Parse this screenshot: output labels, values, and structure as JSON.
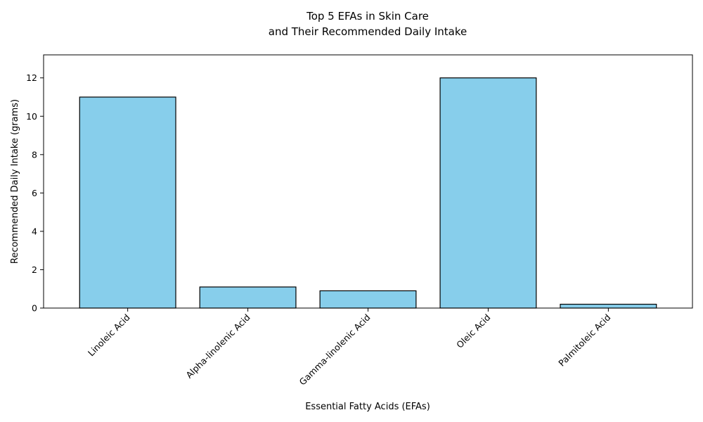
{
  "chart_data": {
    "type": "bar",
    "title_lines": [
      "Top 5 EFAs in Skin Care",
      "and Their Recommended Daily Intake"
    ],
    "xlabel": "Essential Fatty Acids (EFAs)",
    "ylabel": "Recommended Daily Intake (grams)",
    "categories": [
      "Linoleic Acid",
      "Alpha-linolenic Acid",
      "Gamma-linolenic Acid",
      "Oleic Acid",
      "Palmitoleic Acid"
    ],
    "values": [
      11,
      1.1,
      0.9,
      12,
      0.2
    ],
    "ylim": [
      0,
      13.2
    ],
    "yticks": [
      0,
      2,
      4,
      6,
      8,
      10,
      12
    ],
    "grid": false,
    "bar_color": "#87ceeb",
    "bar_edge_color": "#000000"
  }
}
